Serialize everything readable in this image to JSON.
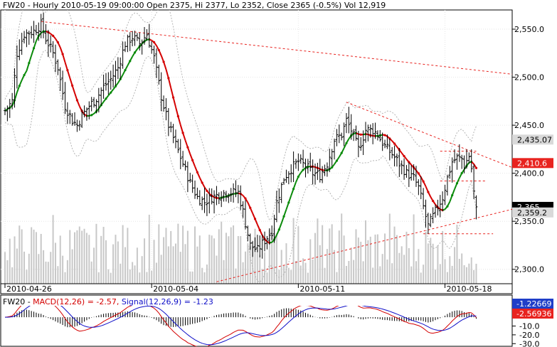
{
  "chart_data": [
    {
      "type": "ohlc",
      "header": "FW20 - Hourly 2010-05-19 09:00:00 Open 2375, Hi 2377, Lo 2352, Close 2365 (-0.5%) Vol 12,919",
      "symbol": "FW20",
      "interval": "Hourly",
      "last_bar": {
        "time": "2010-05-19 09:00:00",
        "open": 2375,
        "high": 2377,
        "low": 2352,
        "close": 2365,
        "change_pct": "-0.5%",
        "volume": "12,919"
      },
      "ylim": [
        2285,
        2570
      ],
      "y_ticks": [
        {
          "value": 2300,
          "label": "2,300.0"
        },
        {
          "value": 2350,
          "label": "2,350.0"
        },
        {
          "value": 2400,
          "label": "2,400.0"
        },
        {
          "value": 2450,
          "label": "2,450.0"
        },
        {
          "value": 2500,
          "label": "2,500.0"
        },
        {
          "value": 2550,
          "label": "2,550.0"
        }
      ],
      "x_labels": [
        {
          "bar": 0,
          "label": "2010-04-26"
        },
        {
          "bar": 61,
          "label": "2010-05-04"
        },
        {
          "bar": 122,
          "label": "2010-05-11"
        },
        {
          "bar": 183,
          "label": "2010-05-18"
        }
      ],
      "price_tags": [
        {
          "value": 2435.07,
          "label": "2,435.07",
          "bg": "#d9d9d9",
          "fg": "#000000"
        },
        {
          "value": 2410.6,
          "label": "2,410.6",
          "bg": "#e8231f",
          "fg": "#ffffff"
        },
        {
          "value": 2365,
          "label": "2,365",
          "bg": "#000000",
          "fg": "#ffffff"
        },
        {
          "value": 2359.2,
          "label": "2,359.2",
          "bg": "#d9d9d9",
          "fg": "#000000"
        }
      ],
      "close_anchors": [
        [
          0,
          2465
        ],
        [
          3,
          2475
        ],
        [
          5,
          2525
        ],
        [
          8,
          2545
        ],
        [
          12,
          2548
        ],
        [
          15,
          2555
        ],
        [
          17,
          2540
        ],
        [
          20,
          2525
        ],
        [
          22,
          2510
        ],
        [
          25,
          2470
        ],
        [
          28,
          2455
        ],
        [
          30,
          2450
        ],
        [
          32,
          2460
        ],
        [
          35,
          2470
        ],
        [
          38,
          2478
        ],
        [
          41,
          2490
        ],
        [
          44,
          2498
        ],
        [
          47,
          2510
        ],
        [
          50,
          2535
        ],
        [
          53,
          2542
        ],
        [
          56,
          2535
        ],
        [
          59,
          2545
        ],
        [
          62,
          2520
        ],
        [
          65,
          2480
        ],
        [
          68,
          2450
        ],
        [
          71,
          2430
        ],
        [
          74,
          2410
        ],
        [
          77,
          2390
        ],
        [
          80,
          2375
        ],
        [
          83,
          2370
        ],
        [
          86,
          2375
        ],
        [
          89,
          2378
        ],
        [
          92,
          2380
        ],
        [
          94,
          2380
        ],
        [
          97,
          2380
        ],
        [
          99,
          2360
        ],
        [
          102,
          2325
        ],
        [
          105,
          2320
        ],
        [
          108,
          2330
        ],
        [
          111,
          2340
        ],
        [
          113,
          2370
        ],
        [
          116,
          2395
        ],
        [
          119,
          2405
        ],
        [
          122,
          2412
        ],
        [
          125,
          2408
        ],
        [
          128,
          2400
        ],
        [
          131,
          2398
        ],
        [
          134,
          2410
        ],
        [
          137,
          2435
        ],
        [
          140,
          2440
        ],
        [
          142,
          2455
        ],
        [
          144,
          2445
        ],
        [
          147,
          2425
        ],
        [
          150,
          2445
        ],
        [
          153,
          2445
        ],
        [
          155,
          2440
        ],
        [
          158,
          2428
        ],
        [
          161,
          2420
        ],
        [
          164,
          2410
        ],
        [
          167,
          2400
        ],
        [
          170,
          2395
        ],
        [
          172,
          2385
        ],
        [
          174,
          2365
        ],
        [
          176,
          2345
        ],
        [
          178,
          2355
        ],
        [
          180,
          2365
        ],
        [
          182,
          2375
        ],
        [
          184,
          2395
        ],
        [
          186,
          2412
        ],
        [
          188,
          2416
        ],
        [
          190,
          2415
        ],
        [
          191,
          2408
        ],
        [
          193,
          2418
        ],
        [
          194,
          2405
        ],
        [
          195,
          2380
        ],
        [
          196,
          2370
        ]
      ],
      "n_bars": 197,
      "ma": {
        "name": "MA",
        "rising_color": "#0a8a0a",
        "falling_color": "#d40000"
      },
      "bands": {
        "name": "Bollinger",
        "color": "#b4b4b4"
      },
      "volume": {
        "color": "#c8c8c8"
      },
      "trendlines": [
        {
          "from": [
            15,
            2558
          ],
          "to": [
            215,
            2502
          ]
        },
        {
          "from": [
            142,
            2474
          ],
          "to": [
            215,
            2402
          ]
        },
        {
          "from": [
            88,
            2287
          ],
          "to": [
            215,
            2365
          ]
        },
        {
          "from": [
            181,
            2423
          ],
          "to": [
            196,
            2423
          ]
        },
        {
          "from": [
            181,
            2392
          ],
          "to": [
            200,
            2392
          ]
        },
        {
          "from": [
            174,
            2337
          ],
          "to": [
            203,
            2337
          ]
        }
      ]
    },
    {
      "type": "macd",
      "legend_prefix": "FW20 - ",
      "macd_label": "MACD(12,26) = -2.57, ",
      "signal_label": "Signal(12,26,9) = -1.23",
      "macd_color": "#d40000",
      "signal_color": "#1010c8",
      "ylim": [
        -33,
        13
      ],
      "y_ticks": [
        {
          "value": -10,
          "label": "-10.0"
        },
        {
          "value": -20,
          "label": "-20.0"
        },
        {
          "value": -30,
          "label": "-30.0"
        }
      ],
      "value_tags": [
        {
          "value": -1.22669,
          "label": "-1.22669",
          "bg": "#1f3ec8",
          "fg": "#ffffff"
        },
        {
          "value": -2.56936,
          "label": "-2.56936",
          "bg": "#e8231f",
          "fg": "#ffffff"
        }
      ]
    }
  ]
}
